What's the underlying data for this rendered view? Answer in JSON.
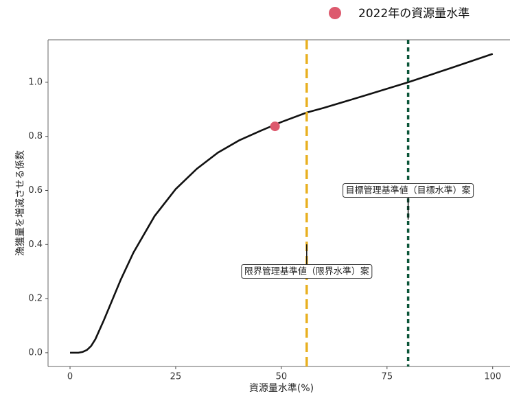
{
  "chart_data": {
    "type": "line",
    "xlabel": "資源量水準(%)",
    "ylabel": "漁獲量を増減させる係数",
    "xlim": [
      -5.2,
      104.1
    ],
    "ylim": [
      -0.051,
      1.157
    ],
    "xticks": [
      0,
      25,
      50,
      75,
      100
    ],
    "yticks": [
      {
        "value": 0,
        "label": "0.0"
      },
      {
        "value": 0.2,
        "label": "0.2"
      },
      {
        "value": 0.4,
        "label": "0.4"
      },
      {
        "value": 0.6,
        "label": "0.6"
      },
      {
        "value": 0.8,
        "label": "0.8"
      },
      {
        "value": 1,
        "label": "1.0"
      }
    ],
    "curve": {
      "color": "#111111",
      "x": [
        0,
        2,
        3,
        4,
        5,
        6,
        8,
        10,
        12,
        15,
        20,
        25,
        30,
        35,
        40,
        45,
        50,
        56,
        60,
        70,
        80,
        90,
        100
      ],
      "y": [
        0,
        0,
        0.003,
        0.01,
        0.025,
        0.05,
        0.12,
        0.195,
        0.27,
        0.37,
        0.505,
        0.605,
        0.68,
        0.74,
        0.785,
        0.82,
        0.853,
        0.888,
        0.905,
        0.952,
        1.0,
        1.052,
        1.105
      ]
    },
    "point": {
      "name": "2022年の資源量水準",
      "x": 48.5,
      "y": 0.837,
      "color": "#dd5a6e"
    },
    "vlines": [
      {
        "x": 56,
        "label": "限界管理基準値（限界水準）案",
        "color": "#e8b020",
        "dash": "14 7"
      },
      {
        "x": 80,
        "label": "目標管理基準値（目標水準）案",
        "color": "#0a5538",
        "dash": "6 5"
      }
    ]
  }
}
